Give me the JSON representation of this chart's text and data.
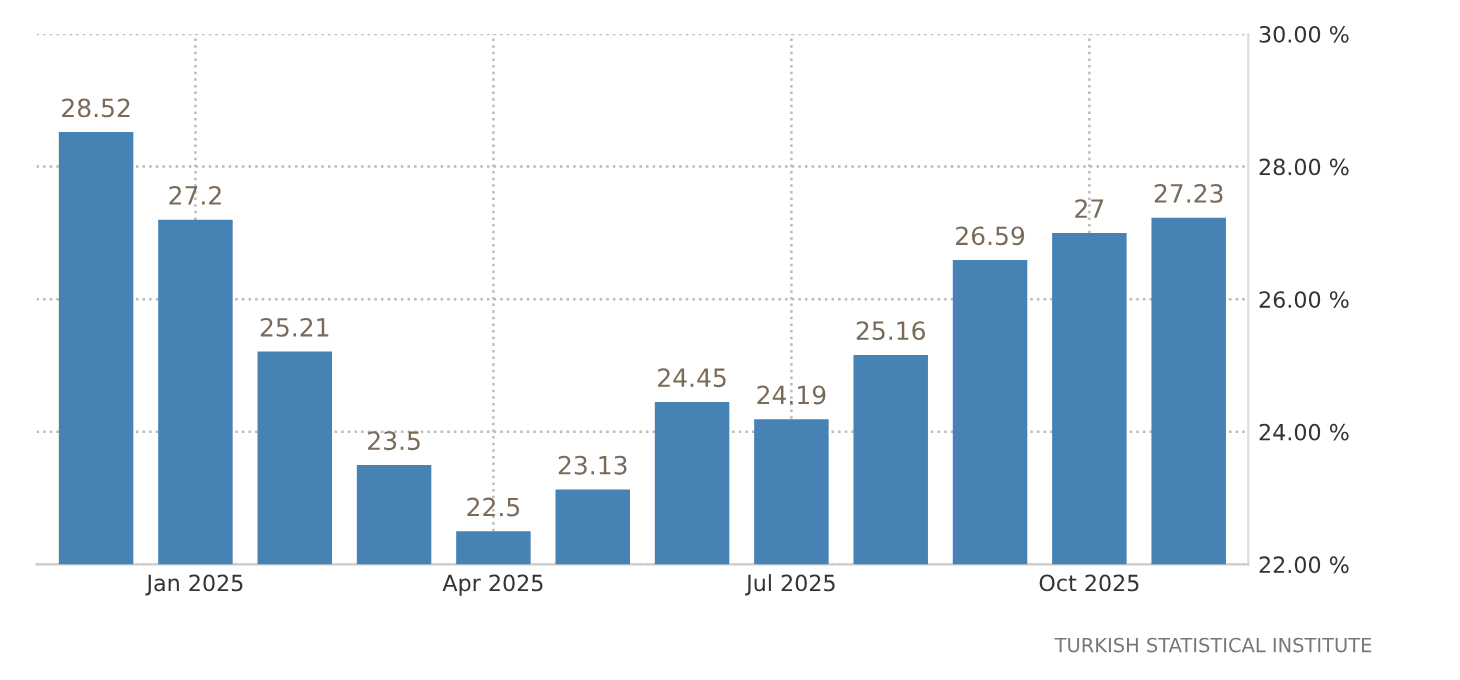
{
  "chart_data": {
    "type": "bar",
    "categories": [
      null,
      "Jan 2025",
      null,
      null,
      "Apr 2025",
      null,
      null,
      "Jul 2025",
      null,
      null,
      "Oct 2025",
      null
    ],
    "values": [
      28.52,
      27.2,
      25.21,
      23.5,
      22.5,
      23.13,
      24.45,
      24.19,
      25.16,
      26.59,
      27,
      27.23
    ],
    "color": "#4682b4",
    "ylim": [
      22,
      30
    ],
    "yticks": [
      {
        "value": 22,
        "label": "22.00 %"
      },
      {
        "value": 24,
        "label": "24.00 %"
      },
      {
        "value": 26,
        "label": "26.00 %"
      },
      {
        "value": 28,
        "label": "28.00 %"
      },
      {
        "value": 30,
        "label": "30.00 %"
      }
    ],
    "grid": true,
    "data_labels": true,
    "annotations": [
      "TURKISH STATISTICAL INSTITUTE"
    ]
  }
}
